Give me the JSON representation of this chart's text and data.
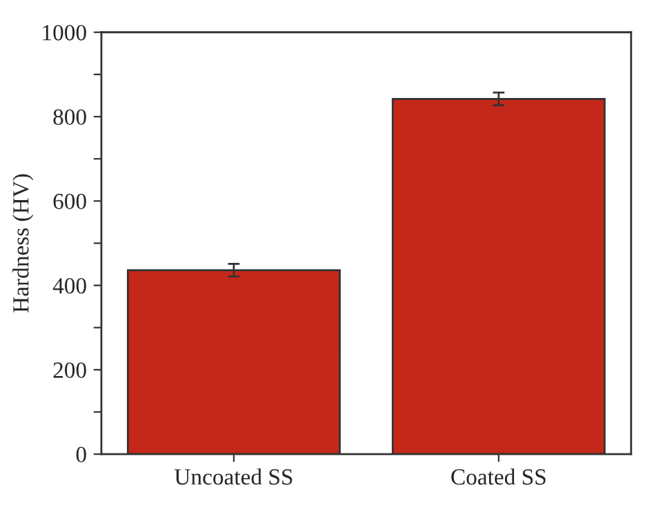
{
  "chart_data": {
    "type": "bar",
    "ylabel": "Hardness (HV)",
    "categories": [
      "Uncoated SS",
      "Coated SS"
    ],
    "values": [
      436,
      842
    ],
    "errors": [
      15,
      15
    ],
    "color": "#c4281a",
    "ylim": [
      0,
      1000
    ],
    "yticks": [
      0,
      {
        "value": 100,
        "label": null
      },
      200,
      {
        "value": 300,
        "label": null
      },
      400,
      {
        "value": 500,
        "label": null
      },
      600,
      {
        "value": 700,
        "label": null
      },
      800,
      {
        "value": 900,
        "label": null
      },
      1000
    ],
    "grid": false,
    "legend": false
  }
}
